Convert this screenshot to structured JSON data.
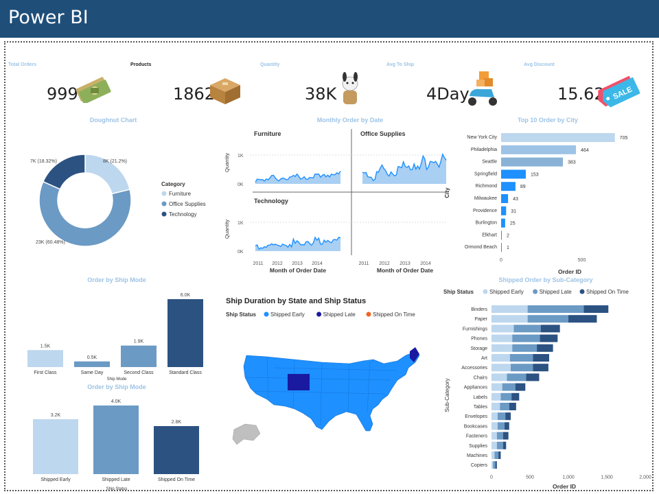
{
  "app": {
    "title": "Power BI"
  },
  "kpis": [
    {
      "label": "Total Orders",
      "value": "999",
      "icon": "money-icon"
    },
    {
      "label": "Products",
      "value": "1862",
      "icon": "box-icon"
    },
    {
      "label": "Quantity",
      "value": "38K",
      "icon": "plush-toy-icon"
    },
    {
      "label": "Avg To Ship",
      "value": "4Day",
      "icon": "delivery-scooter-icon"
    },
    {
      "label": "Avg Discount",
      "value": "15.62",
      "icon": "sale-tag-icon"
    }
  ],
  "colors": {
    "light": "#BDD7EE",
    "mid": "#6B9AC4",
    "dark": "#2C5282",
    "bright": "#1E90FF",
    "header": "#1F4E79",
    "early": "#1E90FF",
    "late": "#1A1AA0",
    "ontime": "#F26522"
  },
  "doughnut": {
    "title": "Doughnut Chart",
    "legend_title": "Category",
    "chart_data": {
      "type": "pie",
      "categories": [
        "Furniture",
        "Office Supplies",
        "Technology"
      ],
      "values": [
        21.2,
        60.48,
        18.32
      ],
      "labels": [
        "8K (21.2%)",
        "23K (60.48%)",
        "7K (18.32%)"
      ]
    }
  },
  "monthly": {
    "title": "Monthly Order by Date",
    "panels": [
      "Furniture",
      "Office Supplies",
      "Technology"
    ],
    "ylabel": "Quantity",
    "yticks": [
      "1K",
      "0K"
    ],
    "xticks": [
      "2011",
      "2012",
      "2013",
      "2014"
    ],
    "xlabel": "Month of Order Date"
  },
  "top10": {
    "title": "Top 10 Order by City",
    "ylabel": "City",
    "xlabel": "Order ID",
    "xticks": [
      "0",
      "500"
    ],
    "chart_data": {
      "type": "bar",
      "categories": [
        "New York City",
        "Philadelphia",
        "Seattle",
        "Springfield",
        "Richmond",
        "Milwaukee",
        "Providence",
        "Burlington",
        "Elkhart",
        "Ormond Beach"
      ],
      "values": [
        705,
        464,
        383,
        153,
        89,
        43,
        31,
        25,
        2,
        1
      ],
      "xlim": [
        0,
        800
      ]
    }
  },
  "shipmode1": {
    "title": "Order by Ship Mode",
    "xlabel": "Ship Mode",
    "chart_data": {
      "type": "bar",
      "categories": [
        "First Class",
        "Same Day",
        "Second Class",
        "Standard Class"
      ],
      "values": [
        1.5,
        0.5,
        1.9,
        6.0
      ],
      "labels": [
        "1.5K",
        "0.5K",
        "1.9K",
        "6.0K"
      ]
    }
  },
  "shipmode2": {
    "title": "Order by Ship Mode",
    "xlabel": "Ship Status",
    "chart_data": {
      "type": "bar",
      "categories": [
        "Shipped Early",
        "Shipped Late",
        "Shipped On Time"
      ],
      "values": [
        3.2,
        4.0,
        2.8
      ],
      "labels": [
        "3.2K",
        "4.0K",
        "2.8K"
      ]
    }
  },
  "map": {
    "title": "Ship Duration by State and Ship Status",
    "legend_title": "Ship Status",
    "legend": [
      "Shipped Early",
      "Shipped Late",
      "Shipped On Time"
    ]
  },
  "subcat": {
    "title": "Shipped Order by Sub-Category",
    "legend_title": "Ship Status",
    "legend": [
      "Shipped Early",
      "Shipped Late",
      "Shipped On Time"
    ],
    "ylabel": "Sub-Category",
    "xlabel": "Order ID",
    "xticks": [
      "0",
      "500",
      "1,000",
      "1,500",
      "2,000"
    ],
    "chart_data": {
      "type": "bar",
      "categories": [
        "Binders",
        "Paper",
        "Furnishings",
        "Phones",
        "Storage",
        "Art",
        "Accessories",
        "Chairs",
        "Appliances",
        "Labels",
        "Tables",
        "Envelopes",
        "Bookcases",
        "Fasteners",
        "Supplies",
        "Machines",
        "Copiers"
      ],
      "series": [
        {
          "name": "Shipped Early",
          "values": [
            470,
            470,
            290,
            270,
            270,
            240,
            250,
            200,
            140,
            120,
            110,
            80,
            80,
            70,
            70,
            40,
            20
          ]
        },
        {
          "name": "Shipped Late",
          "values": [
            730,
            530,
            350,
            360,
            320,
            300,
            290,
            250,
            170,
            140,
            120,
            100,
            90,
            80,
            80,
            50,
            30
          ]
        },
        {
          "name": "Shipped On Time",
          "values": [
            320,
            370,
            250,
            230,
            210,
            210,
            200,
            170,
            130,
            100,
            90,
            70,
            60,
            70,
            40,
            30,
            20
          ]
        }
      ],
      "xlim": [
        0,
        2000
      ]
    }
  }
}
